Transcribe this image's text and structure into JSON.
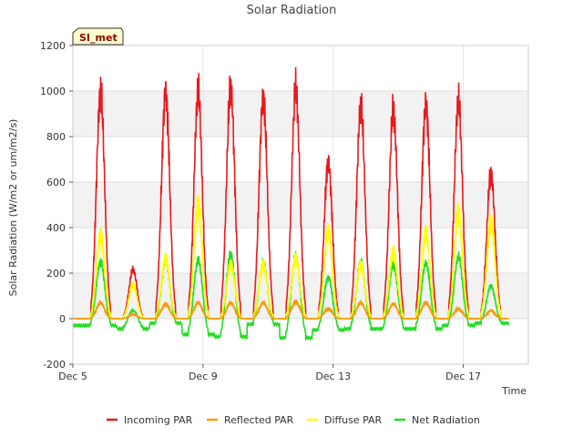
{
  "chart_data": {
    "type": "line",
    "title": "Solar Radiation",
    "xlabel": "Time",
    "ylabel": "Solar Radiation (W/m2 or um/m2/s)",
    "badge": "SI_met",
    "ylim": [
      -200,
      1200
    ],
    "xlim": [
      5,
      19
    ],
    "yticks": [
      -200,
      0,
      200,
      400,
      600,
      800,
      1000,
      1200
    ],
    "xticks": [
      {
        "value": 5,
        "label": "Dec 5"
      },
      {
        "value": 9,
        "label": "Dec 9"
      },
      {
        "value": 13,
        "label": "Dec 13"
      },
      {
        "value": 17,
        "label": "Dec 17"
      }
    ],
    "grid": true,
    "legend_position": "bottom",
    "days": [
      {
        "center": 5.85,
        "incoming": 1000,
        "reflected": 70,
        "diffuse": 370,
        "net": 250,
        "night": -30
      },
      {
        "center": 6.85,
        "incoming": 215,
        "reflected": 20,
        "diffuse": 150,
        "net": 35,
        "night": -45
      },
      {
        "center": 7.85,
        "incoming": 1000,
        "reflected": 65,
        "diffuse": 260,
        "net": 255,
        "night": -20
      },
      {
        "center": 8.85,
        "incoming": 995,
        "reflected": 70,
        "diffuse": 490,
        "net": 255,
        "night": -70
      },
      {
        "center": 9.85,
        "incoming": 1020,
        "reflected": 70,
        "diffuse": 240,
        "net": 285,
        "night": -80
      },
      {
        "center": 10.85,
        "incoming": 975,
        "reflected": 70,
        "diffuse": 240,
        "net": 250,
        "night": -25
      },
      {
        "center": 11.85,
        "incoming": 1005,
        "reflected": 75,
        "diffuse": 260,
        "net": 270,
        "night": -85
      },
      {
        "center": 12.85,
        "incoming": 690,
        "reflected": 45,
        "diffuse": 380,
        "net": 180,
        "night": -50
      },
      {
        "center": 13.85,
        "incoming": 935,
        "reflected": 70,
        "diffuse": 240,
        "net": 250,
        "night": -45
      },
      {
        "center": 14.85,
        "incoming": 915,
        "reflected": 65,
        "diffuse": 295,
        "net": 235,
        "night": -45
      },
      {
        "center": 15.85,
        "incoming": 945,
        "reflected": 70,
        "diffuse": 370,
        "net": 245,
        "night": -45
      },
      {
        "center": 16.85,
        "incoming": 950,
        "reflected": 45,
        "diffuse": 460,
        "net": 270,
        "night": -30
      },
      {
        "center": 17.85,
        "incoming": 640,
        "reflected": 35,
        "diffuse": 430,
        "net": 145,
        "night": -20
      }
    ],
    "series": [
      {
        "name": "Incoming PAR",
        "key": "incoming",
        "color": "#e8191c"
      },
      {
        "name": "Reflected PAR",
        "key": "reflected",
        "color": "#ff9900"
      },
      {
        "name": "Diffuse PAR",
        "key": "diffuse",
        "color": "#ffff00"
      },
      {
        "name": "Net Radiation",
        "key": "net",
        "color": "#22dd22"
      }
    ]
  }
}
